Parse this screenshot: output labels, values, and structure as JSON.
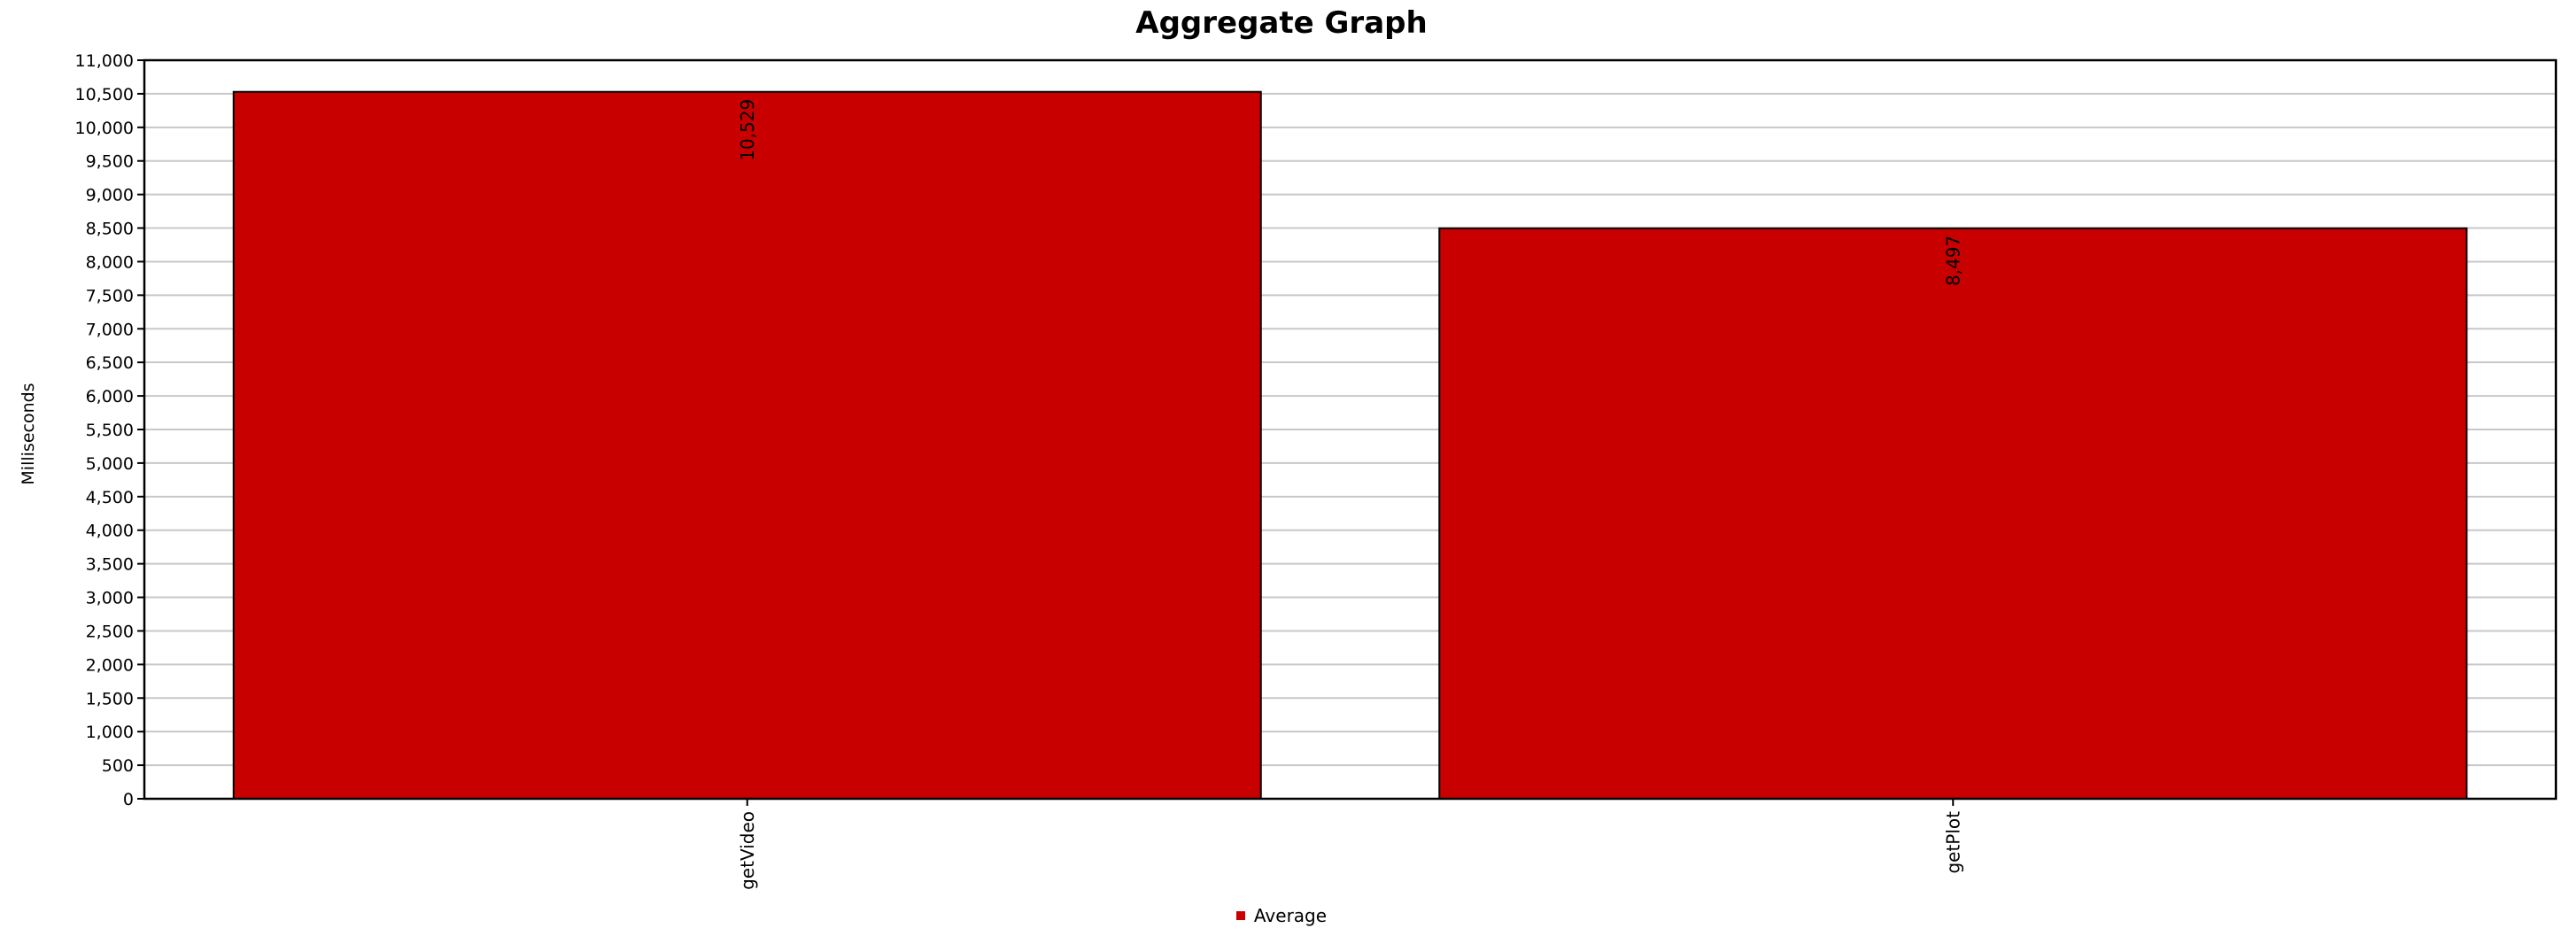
{
  "chart_data": {
    "type": "bar",
    "title": "Aggregate Graph",
    "xlabel": "",
    "ylabel": "Milliseconds",
    "categories": [
      "getVideo",
      "getPlot"
    ],
    "series": [
      {
        "name": "Average",
        "values": [
          10529,
          8497
        ],
        "value_labels": [
          "10,529",
          "8,497"
        ],
        "color": "#c80000"
      }
    ],
    "ylim": [
      0,
      11000
    ],
    "yticks": [
      0,
      500,
      1000,
      1500,
      2000,
      2500,
      3000,
      3500,
      4000,
      4500,
      5000,
      5500,
      6000,
      6500,
      7000,
      7500,
      8000,
      8500,
      9000,
      9500,
      10000,
      10500,
      11000
    ],
    "ytick_labels": [
      "0",
      "500",
      "1,000",
      "1,500",
      "2,000",
      "2,500",
      "3,000",
      "3,500",
      "4,000",
      "4,500",
      "5,000",
      "5,500",
      "6,000",
      "6,500",
      "7,000",
      "7,500",
      "8,000",
      "8,500",
      "9,000",
      "9,500",
      "10,000",
      "10,500",
      "11,000"
    ],
    "grid": true,
    "legend_position": "bottom-center"
  }
}
